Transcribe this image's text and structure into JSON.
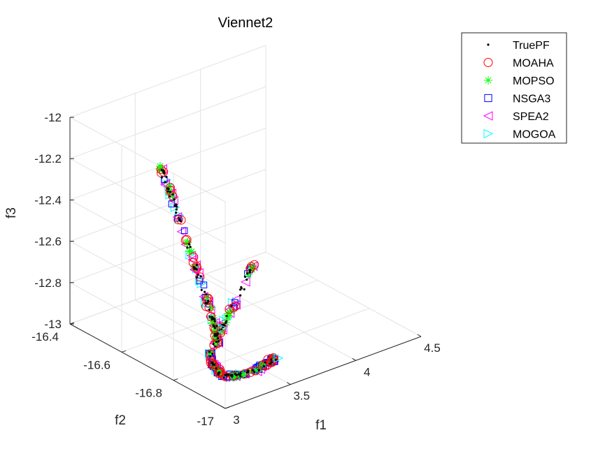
{
  "chart_data": {
    "type": "scatter",
    "title": "Viennet2",
    "xlabel": "f1",
    "ylabel": "f2",
    "zlabel": "f3",
    "xlim": [
      3,
      4.5
    ],
    "ylim": [
      -17,
      -16.4
    ],
    "zlim": [
      -13,
      -12
    ],
    "xticks": [
      "3",
      "3.5",
      "4",
      "4.5"
    ],
    "yticks": [
      "-17",
      "-16.8",
      "-16.6",
      "-16.4"
    ],
    "zticks": [
      "-13",
      "-12.8",
      "-12.6",
      "-12.4",
      "-12.2",
      "-12"
    ],
    "grid": true,
    "legend_position": "top-right",
    "series": [
      {
        "name": "TruePF",
        "marker": "point",
        "color": "#000000"
      },
      {
        "name": "MOAHA",
        "marker": "circle",
        "color": "#ff0000"
      },
      {
        "name": "MOPSO",
        "marker": "asterisk",
        "color": "#00ff00"
      },
      {
        "name": "NSGA3",
        "marker": "square",
        "color": "#0000ff"
      },
      {
        "name": "SPEA2",
        "marker": "triangle-left",
        "color": "#ff00ff"
      },
      {
        "name": "MOGOA",
        "marker": "triangle-right",
        "color": "#00ffff"
      }
    ]
  }
}
